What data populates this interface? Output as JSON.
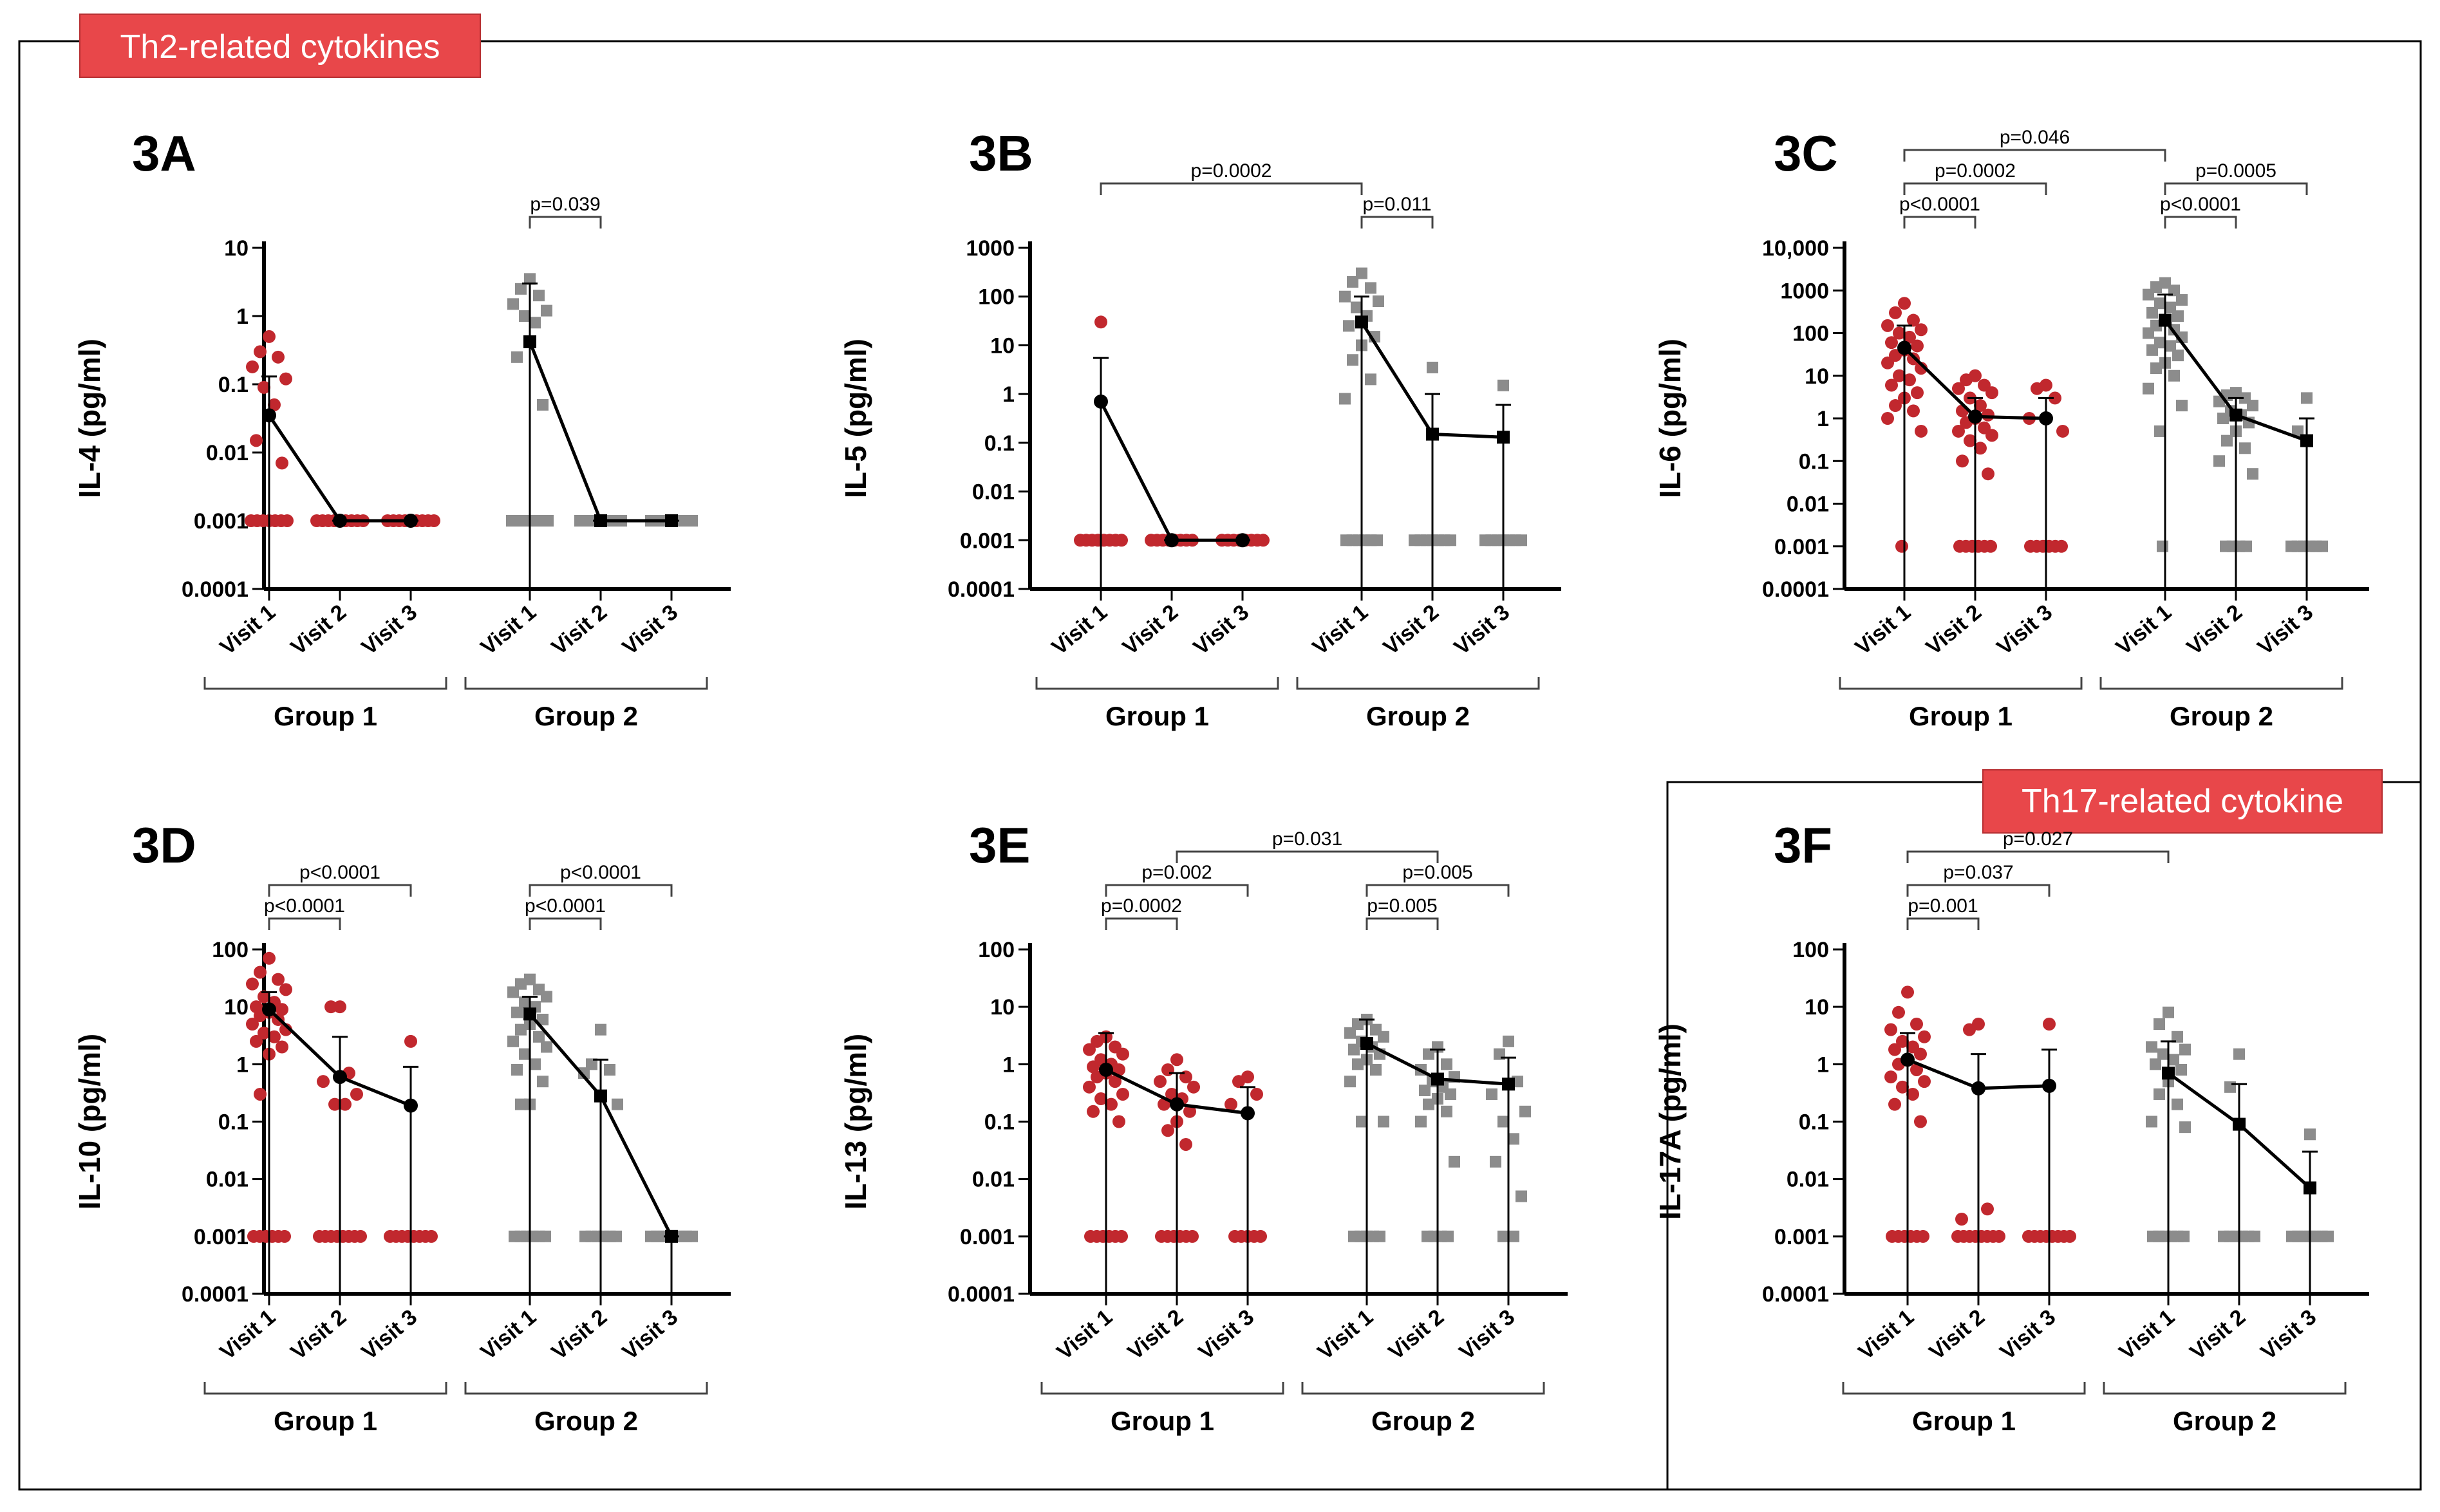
{
  "badges": {
    "th2": "Th2-related cytokines",
    "th17": "Th17-related cytokine"
  },
  "colors": {
    "group1": "#c1282e",
    "group2": "#8c8c8c",
    "badge": "#e8474a"
  },
  "chart_data": [
    {
      "id": "3A",
      "type": "scatter",
      "label": "3A",
      "ylabel": "IL-4 (pg/ml)",
      "yscale": "log",
      "ylim": [
        0.0001,
        10
      ],
      "yticks": [
        {
          "v": 10,
          "t": "10"
        },
        {
          "v": 1,
          "t": "1"
        },
        {
          "v": 0.1,
          "t": "0.1"
        },
        {
          "v": 0.01,
          "t": "0.01"
        },
        {
          "v": 0.001,
          "t": "0.001"
        },
        {
          "v": 0.0001,
          "t": "0.0001"
        }
      ],
      "categories": [
        "Visit 1",
        "Visit 2",
        "Visit 3",
        "Visit 1",
        "Visit 2",
        "Visit 3"
      ],
      "groups": [
        "Group 1",
        "Group 2"
      ],
      "means": [
        0.035,
        0.001,
        0.001,
        0.42,
        0.001,
        0.001
      ],
      "errhi": [
        0.13,
        0.001,
        0.001,
        3.0,
        0.001,
        0.001
      ],
      "errlo": [
        0.0001,
        0.001,
        0.001,
        0.0001,
        0.001,
        0.001
      ],
      "points": [
        [
          0.5,
          0.3,
          0.25,
          0.18,
          0.12,
          0.09,
          0.05,
          0.015,
          0.007,
          0.001,
          0.001,
          0.001,
          0.001,
          0.001,
          0.001,
          0.001
        ],
        [
          0.001,
          0.001,
          0.001,
          0.001,
          0.001,
          0.001,
          0.001,
          0.001,
          0.001
        ],
        [
          0.001,
          0.001,
          0.001,
          0.001,
          0.001,
          0.001,
          0.001,
          0.001,
          0.001
        ],
        [
          3.5,
          2.5,
          2.0,
          1.5,
          1.2,
          1.0,
          0.8,
          0.25,
          0.05,
          0.001,
          0.001,
          0.001,
          0.001,
          0.001,
          0.001,
          0.001
        ],
        [
          0.001,
          0.001,
          0.001,
          0.001,
          0.001,
          0.001,
          0.001,
          0.001
        ],
        [
          0.001,
          0.001,
          0.001,
          0.001,
          0.001,
          0.001,
          0.001,
          0.001
        ]
      ],
      "brackets": [
        {
          "from": 3,
          "to": 4,
          "level": 0,
          "text": "p=0.039"
        }
      ]
    },
    {
      "id": "3B",
      "type": "scatter",
      "label": "3B",
      "ylabel": "IL-5 (pg/ml)",
      "yscale": "log",
      "ylim": [
        0.0001,
        1000
      ],
      "yticks": [
        {
          "v": 1000,
          "t": "1000"
        },
        {
          "v": 100,
          "t": "100"
        },
        {
          "v": 10,
          "t": "10"
        },
        {
          "v": 1,
          "t": "1"
        },
        {
          "v": 0.1,
          "t": "0.1"
        },
        {
          "v": 0.01,
          "t": "0.01"
        },
        {
          "v": 0.001,
          "t": "0.001"
        },
        {
          "v": 0.0001,
          "t": "0.0001"
        }
      ],
      "categories": [
        "Visit 1",
        "Visit 2",
        "Visit 3",
        "Visit 1",
        "Visit 2",
        "Visit 3"
      ],
      "groups": [
        "Group 1",
        "Group 2"
      ],
      "means": [
        0.7,
        0.001,
        0.001,
        30,
        0.15,
        0.13
      ],
      "errhi": [
        5.5,
        0.001,
        0.001,
        100,
        1.0,
        0.6
      ],
      "errlo": [
        0.0001,
        0.001,
        0.001,
        0.0001,
        0.0001,
        0.0001
      ],
      "points": [
        [
          30,
          0.001,
          0.001,
          0.001,
          0.001,
          0.001,
          0.001,
          0.001,
          0.001
        ],
        [
          0.001,
          0.001,
          0.001,
          0.001,
          0.001,
          0.001,
          0.001,
          0.001
        ],
        [
          0.001,
          0.001,
          0.001,
          0.001,
          0.001,
          0.001,
          0.001,
          0.001
        ],
        [
          300,
          200,
          150,
          100,
          80,
          60,
          40,
          25,
          15,
          10,
          5,
          2,
          0.8,
          0.001,
          0.001,
          0.001,
          0.001,
          0.001,
          0.001
        ],
        [
          3.5,
          0.001,
          0.001,
          0.001,
          0.001,
          0.001,
          0.001,
          0.001
        ],
        [
          1.5,
          0.001,
          0.001,
          0.001,
          0.001,
          0.001,
          0.001,
          0.001
        ]
      ],
      "brackets": [
        {
          "from": 3,
          "to": 4,
          "level": 0,
          "text": "p=0.011"
        },
        {
          "from": 0,
          "to": 3,
          "level": 1,
          "text": "p=0.0002"
        }
      ]
    },
    {
      "id": "3C",
      "type": "scatter",
      "label": "3C",
      "ylabel": "IL-6 (pg/ml)",
      "yscale": "log",
      "ylim": [
        0.0001,
        10000
      ],
      "yticks": [
        {
          "v": 10000,
          "t": "10,000"
        },
        {
          "v": 1000,
          "t": "1000"
        },
        {
          "v": 100,
          "t": "100"
        },
        {
          "v": 10,
          "t": "10"
        },
        {
          "v": 1,
          "t": "1"
        },
        {
          "v": 0.1,
          "t": "0.1"
        },
        {
          "v": 0.01,
          "t": "0.01"
        },
        {
          "v": 0.001,
          "t": "0.001"
        },
        {
          "v": 0.0001,
          "t": "0.0001"
        }
      ],
      "categories": [
        "Visit 1",
        "Visit 2",
        "Visit 3",
        "Visit 1",
        "Visit 2",
        "Visit 3"
      ],
      "groups": [
        "Group 1",
        "Group 2"
      ],
      "means": [
        45,
        1.1,
        1.0,
        200,
        1.2,
        0.3
      ],
      "errhi": [
        150,
        3.0,
        3.0,
        800,
        3.0,
        1.0
      ],
      "errlo": [
        0.0001,
        0.0001,
        0.0001,
        0.0001,
        0.0001,
        0.0001
      ],
      "points": [
        [
          500,
          300,
          200,
          150,
          120,
          100,
          80,
          60,
          50,
          40,
          30,
          25,
          20,
          15,
          10,
          8,
          6,
          4,
          3,
          2,
          1.5,
          1,
          0.5,
          0.001
        ],
        [
          10,
          8,
          6,
          5,
          4,
          3,
          2,
          1.5,
          1.2,
          1,
          0.8,
          0.6,
          0.5,
          0.4,
          0.3,
          0.2,
          0.1,
          0.05,
          0.001,
          0.001,
          0.001,
          0.001,
          0.001,
          0.001
        ],
        [
          6,
          5,
          3,
          1,
          0.5,
          0.001,
          0.001,
          0.001,
          0.001,
          0.001,
          0.001
        ],
        [
          1500,
          1200,
          1000,
          800,
          600,
          500,
          400,
          300,
          250,
          200,
          150,
          120,
          100,
          80,
          60,
          50,
          40,
          30,
          20,
          15,
          10,
          5,
          2,
          0.5,
          0.001
        ],
        [
          4,
          3.5,
          3,
          2.5,
          2,
          1.5,
          1.2,
          1,
          0.8,
          0.5,
          0.3,
          0.2,
          0.1,
          0.05,
          0.001,
          0.001,
          0.001,
          0.001
        ],
        [
          3,
          0.5,
          0.001,
          0.001,
          0.001,
          0.001,
          0.001,
          0.001
        ]
      ],
      "brackets": [
        {
          "from": 0,
          "to": 1,
          "level": 0,
          "text": "p<0.0001"
        },
        {
          "from": 0,
          "to": 2,
          "level": 1,
          "text": "p=0.0002"
        },
        {
          "from": 3,
          "to": 4,
          "level": 0,
          "text": "p<0.0001"
        },
        {
          "from": 3,
          "to": 5,
          "level": 1,
          "text": "p=0.0005"
        },
        {
          "from": 0,
          "to": 3,
          "level": 2,
          "text": "p=0.046"
        }
      ]
    },
    {
      "id": "3D",
      "type": "scatter",
      "label": "3D",
      "ylabel": "IL-10 (pg/ml)",
      "yscale": "log",
      "ylim": [
        0.0001,
        100
      ],
      "yticks": [
        {
          "v": 100,
          "t": "100"
        },
        {
          "v": 10,
          "t": "10"
        },
        {
          "v": 1,
          "t": "1"
        },
        {
          "v": 0.1,
          "t": "0.1"
        },
        {
          "v": 0.01,
          "t": "0.01"
        },
        {
          "v": 0.001,
          "t": "0.001"
        },
        {
          "v": 0.0001,
          "t": "0.0001"
        }
      ],
      "categories": [
        "Visit 1",
        "Visit 2",
        "Visit 3",
        "Visit 1",
        "Visit 2",
        "Visit 3"
      ],
      "groups": [
        "Group 1",
        "Group 2"
      ],
      "means": [
        9,
        0.6,
        0.19,
        7.5,
        0.28,
        0.001
      ],
      "errhi": [
        18,
        3.0,
        0.9,
        15,
        1.2,
        0.001
      ],
      "errlo": [
        0.0001,
        0.0001,
        0.0001,
        0.0001,
        0.0001,
        0.0001
      ],
      "points": [
        [
          70,
          40,
          30,
          25,
          20,
          15,
          12,
          10,
          9,
          8,
          7,
          6,
          5,
          4,
          3.5,
          3,
          2.5,
          2,
          1.5,
          0.3,
          0.001,
          0.001,
          0.001,
          0.001,
          0.001,
          0.001
        ],
        [
          10,
          10,
          0.7,
          0.5,
          0.3,
          0.2,
          0.2,
          0.001,
          0.001,
          0.001,
          0.001,
          0.001,
          0.001,
          0.001,
          0.001
        ],
        [
          2.5,
          0.001,
          0.001,
          0.001,
          0.001,
          0.001,
          0.001,
          0.001,
          0.001
        ],
        [
          30,
          25,
          20,
          18,
          15,
          12,
          10,
          8,
          6,
          5,
          4,
          3,
          2.5,
          2,
          1.5,
          1,
          0.8,
          0.5,
          0.2,
          0.2,
          0.001,
          0.001,
          0.001,
          0.001,
          0.001,
          0.001
        ],
        [
          4,
          1,
          0.8,
          0.7,
          0.2,
          0.001,
          0.001,
          0.001,
          0.001,
          0.001,
          0.001
        ],
        [
          0.001,
          0.001,
          0.001,
          0.001,
          0.001,
          0.001,
          0.001,
          0.001
        ]
      ],
      "brackets": [
        {
          "from": 0,
          "to": 1,
          "level": 0,
          "text": "p<0.0001"
        },
        {
          "from": 0,
          "to": 2,
          "level": 1,
          "text": "p<0.0001"
        },
        {
          "from": 3,
          "to": 4,
          "level": 0,
          "text": "p<0.0001"
        },
        {
          "from": 3,
          "to": 5,
          "level": 1,
          "text": "p<0.0001"
        }
      ]
    },
    {
      "id": "3E",
      "type": "scatter",
      "label": "3E",
      "ylabel": "IL-13 (pg/ml)",
      "yscale": "log",
      "ylim": [
        0.0001,
        100
      ],
      "yticks": [
        {
          "v": 100,
          "t": "100"
        },
        {
          "v": 10,
          "t": "10"
        },
        {
          "v": 1,
          "t": "1"
        },
        {
          "v": 0.1,
          "t": "0.1"
        },
        {
          "v": 0.01,
          "t": "0.01"
        },
        {
          "v": 0.001,
          "t": "0.001"
        },
        {
          "v": 0.0001,
          "t": "0.0001"
        }
      ],
      "categories": [
        "Visit 1",
        "Visit 2",
        "Visit 3",
        "Visit 1",
        "Visit 2",
        "Visit 3"
      ],
      "groups": [
        "Group 1",
        "Group 2"
      ],
      "means": [
        0.8,
        0.2,
        0.14,
        2.3,
        0.55,
        0.45
      ],
      "errhi": [
        3.5,
        0.7,
        0.4,
        6.0,
        1.8,
        1.3
      ],
      "errlo": [
        0.0001,
        0.0001,
        0.0001,
        0.0001,
        0.0001,
        0.0001
      ],
      "points": [
        [
          3,
          2.5,
          2,
          1.8,
          1.5,
          1.2,
          1,
          0.9,
          0.8,
          0.7,
          0.6,
          0.5,
          0.4,
          0.3,
          0.25,
          0.2,
          0.15,
          0.1,
          0.001,
          0.001,
          0.001,
          0.001,
          0.001,
          0.001
        ],
        [
          1.2,
          0.8,
          0.6,
          0.5,
          0.4,
          0.3,
          0.25,
          0.2,
          0.15,
          0.1,
          0.07,
          0.04,
          0.001,
          0.001,
          0.001,
          0.001,
          0.001,
          0.001
        ],
        [
          0.6,
          0.5,
          0.3,
          0.2,
          0.001,
          0.001,
          0.001,
          0.001,
          0.001
        ],
        [
          6,
          5,
          4,
          3.5,
          3,
          2.5,
          2,
          1.8,
          1.5,
          1.2,
          1,
          0.8,
          0.5,
          0.1,
          0.1,
          0.001,
          0.001,
          0.001,
          0.001,
          0.001
        ],
        [
          2,
          1.5,
          1,
          0.8,
          0.6,
          0.5,
          0.4,
          0.35,
          0.3,
          0.25,
          0.2,
          0.15,
          0.1,
          0.02,
          0.001,
          0.001,
          0.001,
          0.001
        ],
        [
          2.5,
          1.5,
          0.5,
          0.3,
          0.15,
          0.1,
          0.05,
          0.02,
          0.005,
          0.001,
          0.001
        ]
      ],
      "brackets": [
        {
          "from": 0,
          "to": 1,
          "level": 0,
          "text": "p=0.0002"
        },
        {
          "from": 0,
          "to": 2,
          "level": 1,
          "text": "p=0.002"
        },
        {
          "from": 3,
          "to": 4,
          "level": 0,
          "text": "p=0.005"
        },
        {
          "from": 3,
          "to": 5,
          "level": 1,
          "text": "p=0.005"
        },
        {
          "from": 1,
          "to": 4,
          "level": 2,
          "text": "p=0.031"
        }
      ]
    },
    {
      "id": "3F",
      "type": "scatter",
      "label": "3F",
      "ylabel": "IL-17A (pg/ml)",
      "yscale": "log",
      "ylim": [
        0.0001,
        100
      ],
      "yticks": [
        {
          "v": 100,
          "t": "100"
        },
        {
          "v": 10,
          "t": "10"
        },
        {
          "v": 1,
          "t": "1"
        },
        {
          "v": 0.1,
          "t": "0.1"
        },
        {
          "v": 0.01,
          "t": "0.01"
        },
        {
          "v": 0.001,
          "t": "0.001"
        },
        {
          "v": 0.0001,
          "t": "0.0001"
        }
      ],
      "categories": [
        "Visit 1",
        "Visit 2",
        "Visit 3",
        "Visit 1",
        "Visit 2",
        "Visit 3"
      ],
      "groups": [
        "Group 1",
        "Group 2"
      ],
      "means": [
        1.2,
        0.38,
        0.42,
        0.7,
        0.09,
        0.007
      ],
      "errhi": [
        3.5,
        1.5,
        1.8,
        2.5,
        0.45,
        0.03
      ],
      "errlo": [
        0.0001,
        0.0001,
        0.0001,
        0.0001,
        0.0001,
        0.0001
      ],
      "points": [
        [
          18,
          8,
          5,
          4,
          3,
          2.5,
          2,
          1.8,
          1.5,
          1.2,
          1,
          0.8,
          0.6,
          0.5,
          0.4,
          0.3,
          0.2,
          0.1,
          0.001,
          0.001,
          0.001,
          0.001,
          0.001,
          0.001
        ],
        [
          5,
          4,
          0.003,
          0.002,
          0.001,
          0.001,
          0.001,
          0.001,
          0.001,
          0.001,
          0.001,
          0.001
        ],
        [
          5,
          0.001,
          0.001,
          0.001,
          0.001,
          0.001,
          0.001,
          0.001,
          0.001
        ],
        [
          8,
          5,
          3,
          2,
          1.8,
          1.5,
          1.2,
          1,
          0.8,
          0.5,
          0.3,
          0.2,
          0.1,
          0.08,
          0.001,
          0.001,
          0.001,
          0.001,
          0.001,
          0.001
        ],
        [
          1.5,
          0.4,
          0.001,
          0.001,
          0.001,
          0.001,
          0.001,
          0.001
        ],
        [
          0.06,
          0.001,
          0.001,
          0.001,
          0.001,
          0.001,
          0.001,
          0.001
        ]
      ],
      "brackets": [
        {
          "from": 0,
          "to": 1,
          "level": 0,
          "text": "p=0.001"
        },
        {
          "from": 0,
          "to": 2,
          "level": 1,
          "text": "p=0.037"
        },
        {
          "from": 0,
          "to": 3,
          "level": 2,
          "text": "p=0.027"
        }
      ]
    }
  ]
}
